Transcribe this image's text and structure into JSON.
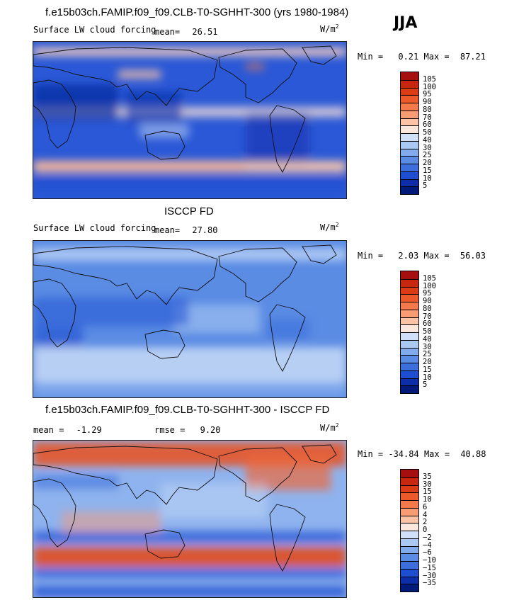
{
  "season": "JJA",
  "panels": [
    {
      "id": "model",
      "title": "f.e15b03ch.FAMIP.f09_f09.CLB-T0-SGHHT-300 (yrs 1980-1984)",
      "variable": "Surface LW cloud forcing",
      "stat_label": "mean=",
      "stat_value": "26.51",
      "units": "W/m",
      "units_exp": "2",
      "min_label": "Min =",
      "min_value": "0.21",
      "max_label": "Max =",
      "max_value": "87.21",
      "colorbar_levels": [
        "105",
        "100",
        "95",
        "90",
        "80",
        "70",
        "60",
        "50",
        "40",
        "30",
        "25",
        "20",
        "15",
        "10",
        "5"
      ],
      "colorbar_colors": [
        "#a50f0f",
        "#c8270f",
        "#dc3c13",
        "#ec5a2c",
        "#f47a4c",
        "#f89c74",
        "#fcc3a5",
        "#fbe7dc",
        "#cfe0f8",
        "#a9c8f2",
        "#82abec",
        "#5b8ce4",
        "#3c6fdc",
        "#1f4fd1",
        "#0d2ea8",
        "#001a7a"
      ]
    },
    {
      "id": "obs",
      "title": "ISCCP FD",
      "variable": "Surface LW cloud forcing",
      "stat_label": "mean=",
      "stat_value": "27.80",
      "units": "W/m",
      "units_exp": "2",
      "min_label": "Min =",
      "min_value": "2.03",
      "max_label": "Max =",
      "max_value": "56.03",
      "colorbar_levels": [
        "105",
        "100",
        "95",
        "90",
        "80",
        "70",
        "60",
        "50",
        "40",
        "30",
        "25",
        "20",
        "15",
        "10",
        "5"
      ],
      "colorbar_colors": [
        "#a50f0f",
        "#c8270f",
        "#dc3c13",
        "#ec5a2c",
        "#f47a4c",
        "#f89c74",
        "#fcc3a5",
        "#fbe7dc",
        "#cfe0f8",
        "#a9c8f2",
        "#82abec",
        "#5b8ce4",
        "#3c6fdc",
        "#1f4fd1",
        "#0d2ea8",
        "#001a7a"
      ]
    },
    {
      "id": "diff",
      "title": "f.e15b03ch.FAMIP.f09_f09.CLB-T0-SGHHT-300 - ISCCP FD",
      "stat_label": "mean =",
      "stat_value": "-1.29",
      "rmse_label": "rmse =",
      "rmse_value": "9.20",
      "units": "W/m",
      "units_exp": "2",
      "min_label": "Min =",
      "min_value": "-34.84",
      "max_label": "Max =",
      "max_value": "40.88",
      "colorbar_levels": [
        "35",
        "30",
        "15",
        "10",
        "6",
        "4",
        "2",
        "0",
        "−2",
        "−4",
        "−6",
        "−10",
        "−15",
        "−30",
        "−35"
      ],
      "colorbar_colors": [
        "#a50f0f",
        "#c8270f",
        "#dc3c13",
        "#ec5a2c",
        "#f47a4c",
        "#f89c74",
        "#fcc3a5",
        "#fbe7dc",
        "#cfe0f8",
        "#a9c8f2",
        "#82abec",
        "#5b8ce4",
        "#3c6fdc",
        "#1f4fd1",
        "#0d2ea8",
        "#001a7a"
      ]
    }
  ],
  "chart_data": [
    {
      "type": "heatmap",
      "title": "f.e15b03ch.FAMIP.f09_f09.CLB-T0-SGHHT-300 (yrs 1980-1984)",
      "subtitle": "Surface LW cloud forcing",
      "season": "JJA",
      "units": "W/m2",
      "mean": 26.51,
      "min": 0.21,
      "max": 87.21,
      "contour_levels": [
        5,
        10,
        15,
        20,
        25,
        30,
        40,
        50,
        60,
        70,
        80,
        90,
        95,
        100,
        105
      ]
    },
    {
      "type": "heatmap",
      "title": "ISCCP FD",
      "subtitle": "Surface LW cloud forcing",
      "units": "W/m2",
      "mean": 27.8,
      "min": 2.03,
      "max": 56.03,
      "contour_levels": [
        5,
        10,
        15,
        20,
        25,
        30,
        40,
        50,
        60,
        70,
        80,
        90,
        95,
        100,
        105
      ]
    },
    {
      "type": "heatmap",
      "title": "f.e15b03ch.FAMIP.f09_f09.CLB-T0-SGHHT-300 - ISCCP FD",
      "units": "W/m2",
      "mean": -1.29,
      "rmse": 9.2,
      "min": -34.84,
      "max": 40.88,
      "contour_levels": [
        -35,
        -30,
        -15,
        -10,
        -6,
        -4,
        -2,
        0,
        2,
        4,
        6,
        10,
        15,
        30,
        35
      ]
    }
  ]
}
